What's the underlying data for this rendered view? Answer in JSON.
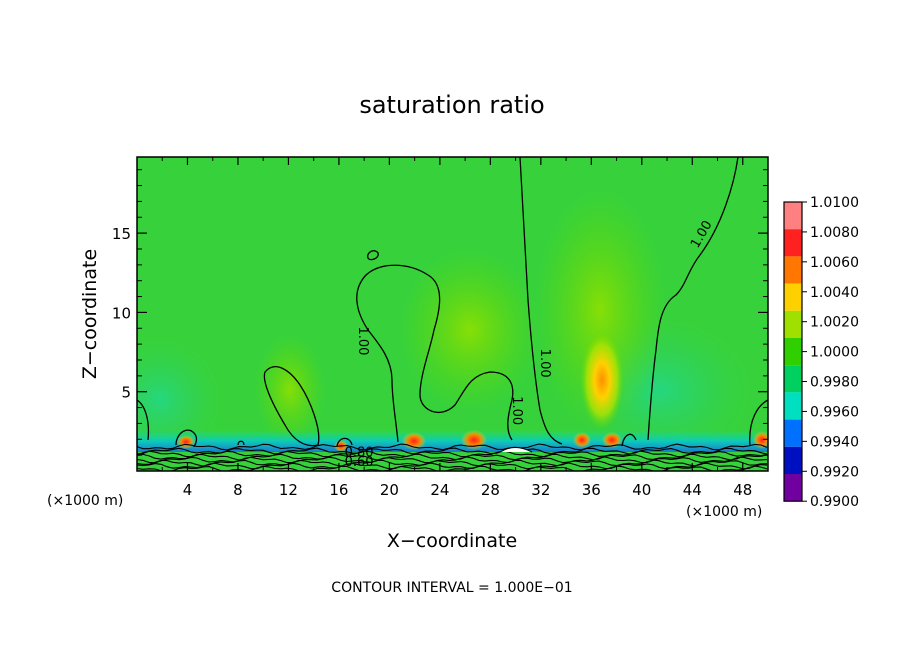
{
  "chart_data": {
    "type": "heatmap",
    "title": "saturation ratio",
    "xlabel": "X−coordinate",
    "ylabel": "Z−coordinate",
    "x_unit_left": "(×1000 m)",
    "x_unit_right": "(×1000 m)",
    "footer": "CONTOUR INTERVAL = 1.000E−01",
    "xlim": [
      0,
      50
    ],
    "ylim": [
      0,
      19.8
    ],
    "x_ticks": [
      "4",
      "8",
      "12",
      "16",
      "20",
      "24",
      "28",
      "32",
      "36",
      "40",
      "44",
      "48"
    ],
    "x_tick_values": [
      4,
      8,
      12,
      16,
      20,
      24,
      28,
      32,
      36,
      40,
      44,
      48
    ],
    "y_ticks": [
      "5",
      "10",
      "15"
    ],
    "y_tick_values": [
      5,
      10,
      15
    ],
    "contour_labels": [
      {
        "text": "1.00",
        "x": 17.6,
        "z": 8.2
      },
      {
        "text": "1.00",
        "x": 29.8,
        "z": 3.8
      },
      {
        "text": "1.00",
        "x": 32.0,
        "z": 6.8
      },
      {
        "text": "1.00",
        "x": 45.0,
        "z": 14.8
      },
      {
        "text": "0.80",
        "x": 17.6,
        "z": 0.9
      },
      {
        "text": "0.60",
        "x": 17.6,
        "z": 0.3
      }
    ],
    "colorbar": {
      "levels": [
        "1.0100",
        "1.0080",
        "1.0060",
        "1.0040",
        "1.0020",
        "1.0000",
        "0.9980",
        "0.9960",
        "0.9940",
        "0.9920",
        "0.9900"
      ],
      "colors": [
        "#ff8080",
        "#ff2020",
        "#ff7700",
        "#ffd000",
        "#a0e000",
        "#30d000",
        "#00d060",
        "#00e0c0",
        "#0070ff",
        "#0010c0",
        "#7000a0"
      ]
    },
    "background_color": "#37d23b",
    "hotspots": [
      {
        "x": 36.9,
        "z": 5.8,
        "value": 1.0045
      },
      {
        "x": 36.5,
        "z": 7.0,
        "value": 1.003
      },
      {
        "x": 26.8,
        "z": 2.0,
        "value": 1.006
      },
      {
        "x": 22.0,
        "z": 2.0,
        "value": 1.006
      },
      {
        "x": 35.0,
        "z": 2.0,
        "value": 1.005
      },
      {
        "x": 37.6,
        "z": 2.0,
        "value": 1.006
      },
      {
        "x": 3.8,
        "z": 2.0,
        "value": 1.005
      },
      {
        "x": 49.6,
        "z": 2.0,
        "value": 1.006
      },
      {
        "x": 16.2,
        "z": 2.0,
        "value": 1.004
      }
    ]
  }
}
